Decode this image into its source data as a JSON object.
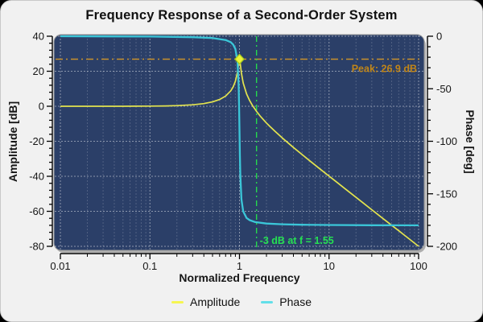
{
  "title": "Frequency Response of a Second-Order System",
  "chart_data": {
    "type": "line",
    "title": "Frequency Response of a Second-Order System",
    "plot_bg": "#2b3f68",
    "grid": {
      "major": true,
      "minor_x": true,
      "style": "dotted",
      "color": "#ffffff"
    },
    "x_axis": {
      "label": "Normalized Frequency",
      "scale": "log",
      "range": [
        0.01,
        100
      ],
      "ticks": [
        0.01,
        0.1,
        1,
        10,
        100
      ],
      "tick_labels": [
        "0.01",
        "0.1",
        "1",
        "10",
        "100"
      ]
    },
    "y_axis_left": {
      "label": "Amplitude [dB]",
      "range": [
        -80,
        40
      ],
      "ticks": [
        40,
        20,
        0,
        -20,
        -40,
        -60,
        -80
      ],
      "tick_labels": [
        "40",
        "20",
        "0",
        "-20",
        "-40",
        "-60",
        "-80"
      ],
      "minor_step": 4
    },
    "y_axis_right": {
      "label": "Phase [deg]",
      "range": [
        -200,
        0
      ],
      "ticks": [
        0,
        -50,
        -100,
        -150,
        -200
      ],
      "tick_labels": [
        "0",
        "-50",
        "-100",
        "-150",
        "-200"
      ],
      "minor_step": 10
    },
    "series": [
      {
        "name": "Amplitude",
        "axis": "left",
        "color": "#e4e44e",
        "x": [
          0.01,
          0.02,
          0.03,
          0.05,
          0.07,
          0.1,
          0.15,
          0.2,
          0.3,
          0.4,
          0.5,
          0.6,
          0.7,
          0.8,
          0.85,
          0.9,
          0.95,
          0.98,
          1.0,
          1.02,
          1.05,
          1.1,
          1.2,
          1.3,
          1.4,
          1.55,
          1.7,
          1.8,
          2.0,
          2.2,
          2.5,
          3.0,
          4.0,
          5.0,
          6.0,
          8.0,
          10,
          12,
          15,
          20,
          25,
          30,
          40,
          50,
          60,
          70,
          80,
          100
        ],
        "y": [
          0.0,
          0.0,
          0.01,
          0.02,
          0.04,
          0.09,
          0.2,
          0.35,
          0.82,
          1.51,
          2.5,
          3.88,
          5.85,
          8.83,
          11.05,
          14.23,
          19.45,
          24.52,
          26.9,
          24.25,
          18.94,
          13.32,
          7.07,
          3.19,
          0.34,
          -2.95,
          -5.53,
          -7.0,
          -9.55,
          -11.7,
          -14.4,
          -18.06,
          -23.52,
          -27.6,
          -30.9,
          -36.0,
          -39.91,
          -43.1,
          -47.0,
          -52.02,
          -55.9,
          -59.08,
          -64.1,
          -67.96,
          -71.1,
          -73.8,
          -76.1,
          -80.0
        ]
      },
      {
        "name": "Phase",
        "axis": "right",
        "color": "#3bc6d8",
        "x": [
          0.01,
          0.1,
          0.3,
          0.5,
          0.7,
          0.8,
          0.85,
          0.9,
          0.95,
          0.98,
          0.99,
          1.0,
          1.01,
          1.02,
          1.05,
          1.1,
          1.2,
          1.3,
          1.5,
          2.0,
          3.0,
          5.0,
          10,
          30,
          100
        ],
        "y": [
          0.0,
          -0.3,
          -0.9,
          -1.7,
          -3.6,
          -5.7,
          -7.9,
          -12.1,
          -23.8,
          -48.2,
          -66.1,
          -90.0,
          -113.8,
          -131.2,
          -155.1,
          -166.7,
          -173.0,
          -175.1,
          -176.9,
          -178.3,
          -179.0,
          -179.5,
          -179.7,
          -179.9,
          -180.0
        ]
      }
    ],
    "annotations": {
      "peak_line": {
        "value_db": 26.9,
        "style": "dashdot",
        "color": "#c9912c",
        "label": "Peak: 26.9 dB",
        "label_color": "#c08518"
      },
      "cutoff_line": {
        "value_f": 1.55,
        "style": "dashdot",
        "color": "#25da4d",
        "label": "-3 dB at f = 1.55",
        "label_color": "#25e052"
      },
      "peak_marker": {
        "x": 1.0,
        "y_db": 26.9,
        "shape": "diamond",
        "fill": "#eef43a",
        "stroke": "#a9cc1e"
      }
    },
    "legend": {
      "position": "bottom",
      "entries": [
        {
          "label": "Amplitude",
          "color": "#f6f651"
        },
        {
          "label": "Phase",
          "color": "#62dfe9"
        }
      ]
    }
  }
}
